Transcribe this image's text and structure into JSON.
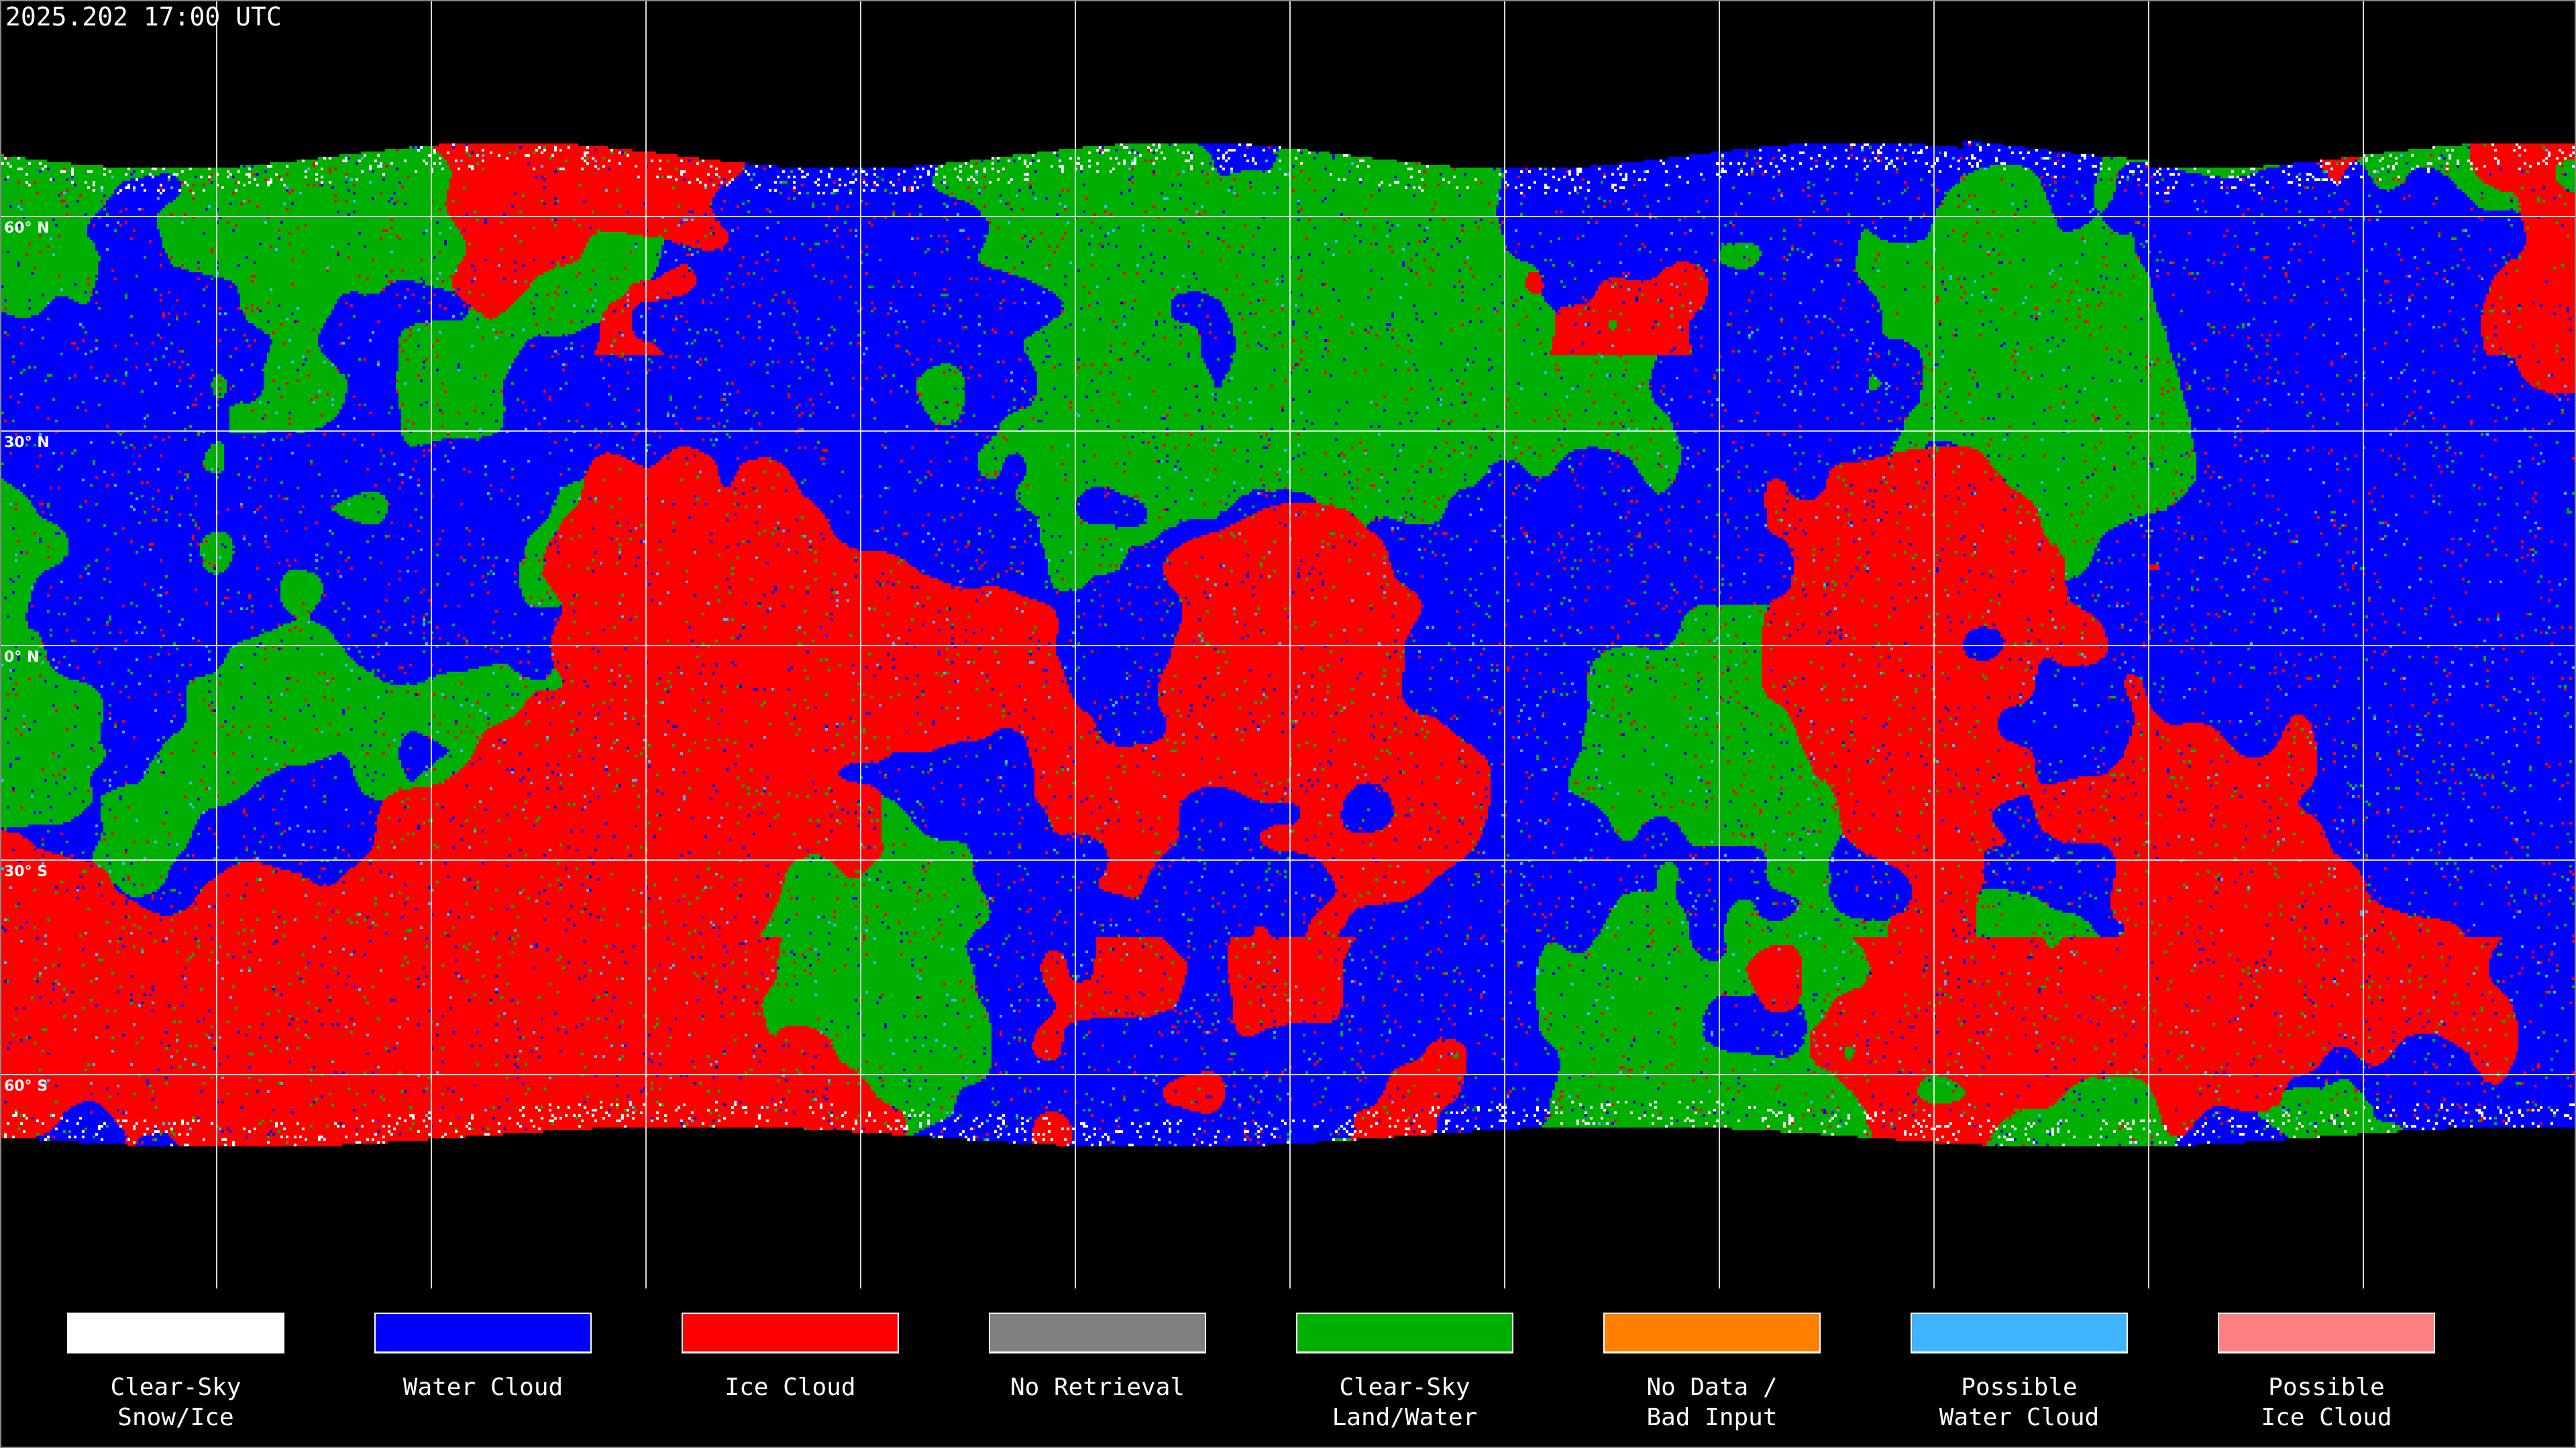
{
  "header": {
    "timestamp": "2025.202 17:00 UTC"
  },
  "map": {
    "projection": "equirectangular",
    "lat_labels": [
      "60° N",
      "30° N",
      "0° N",
      "30° S",
      "60° S"
    ],
    "grid_spacing_degrees": 30
  },
  "legend": [
    {
      "line1": "Clear-Sky",
      "line2": "Snow/Ice",
      "color": "#ffffff"
    },
    {
      "line1": "Water Cloud",
      "line2": "",
      "color": "#0000ff"
    },
    {
      "line1": "Ice Cloud",
      "line2": "",
      "color": "#ff0000"
    },
    {
      "line1": "No Retrieval",
      "line2": "",
      "color": "#808080"
    },
    {
      "line1": "Clear-Sky",
      "line2": "Land/Water",
      "color": "#00b000"
    },
    {
      "line1": "No Data /",
      "line2": "Bad Input",
      "color": "#ff8000"
    },
    {
      "line1": "Possible",
      "line2": "Water Cloud",
      "color": "#40b4ff"
    },
    {
      "line1": "Possible",
      "line2": "Ice Cloud",
      "color": "#ff8080"
    }
  ]
}
